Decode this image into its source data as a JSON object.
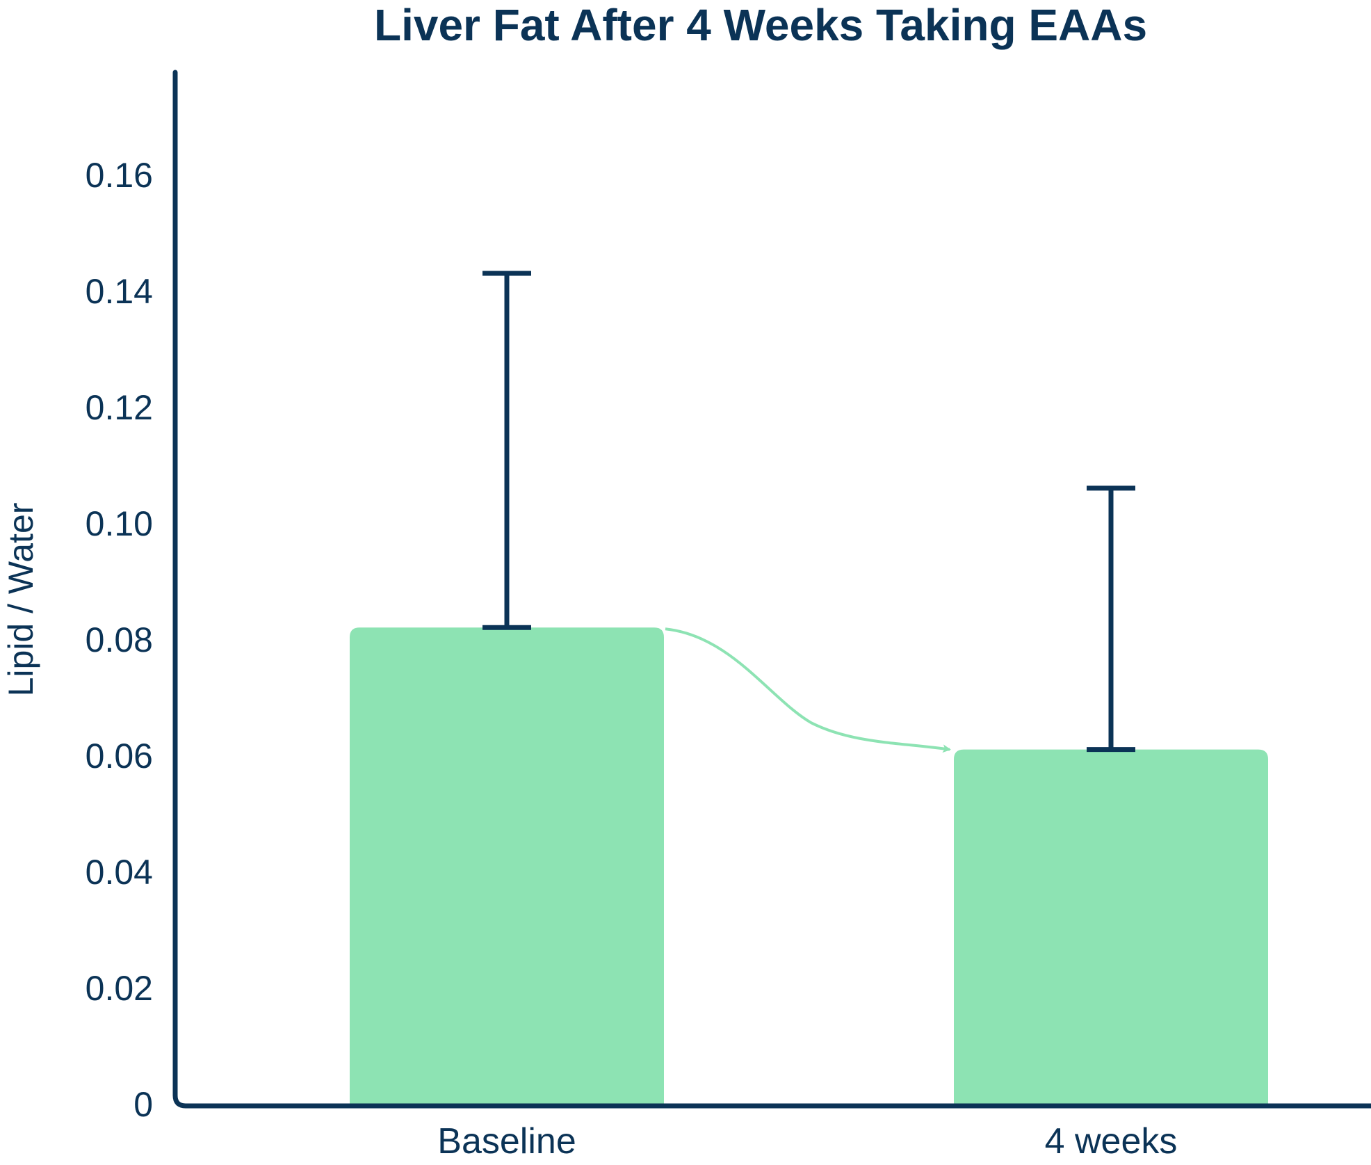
{
  "colors": {
    "axis": "#0b3356",
    "bar": "#8de3b3",
    "text": "#0b3356",
    "arrow": "#8de3b3"
  },
  "chart_data": {
    "type": "bar",
    "title": "Liver Fat After 4 Weeks Taking EAAs",
    "xlabel": "",
    "ylabel": "Lipid / Water",
    "categories": [
      "Baseline",
      "4 weeks"
    ],
    "values": [
      0.082,
      0.061
    ],
    "error_upper": [
      0.143,
      0.106
    ],
    "ylim": [
      0,
      0.175
    ],
    "yticks": [
      0,
      0.02,
      0.04,
      0.06,
      0.08,
      0.1,
      0.12,
      0.14,
      0.16
    ],
    "ytick_labels": [
      "0",
      "0.02",
      "0.04",
      "0.06",
      "0.08",
      "0.10",
      "0.12",
      "0.14",
      "0.16"
    ],
    "annotations": [
      {
        "type": "arrow",
        "from": "Baseline",
        "to": "4 weeks"
      }
    ]
  }
}
